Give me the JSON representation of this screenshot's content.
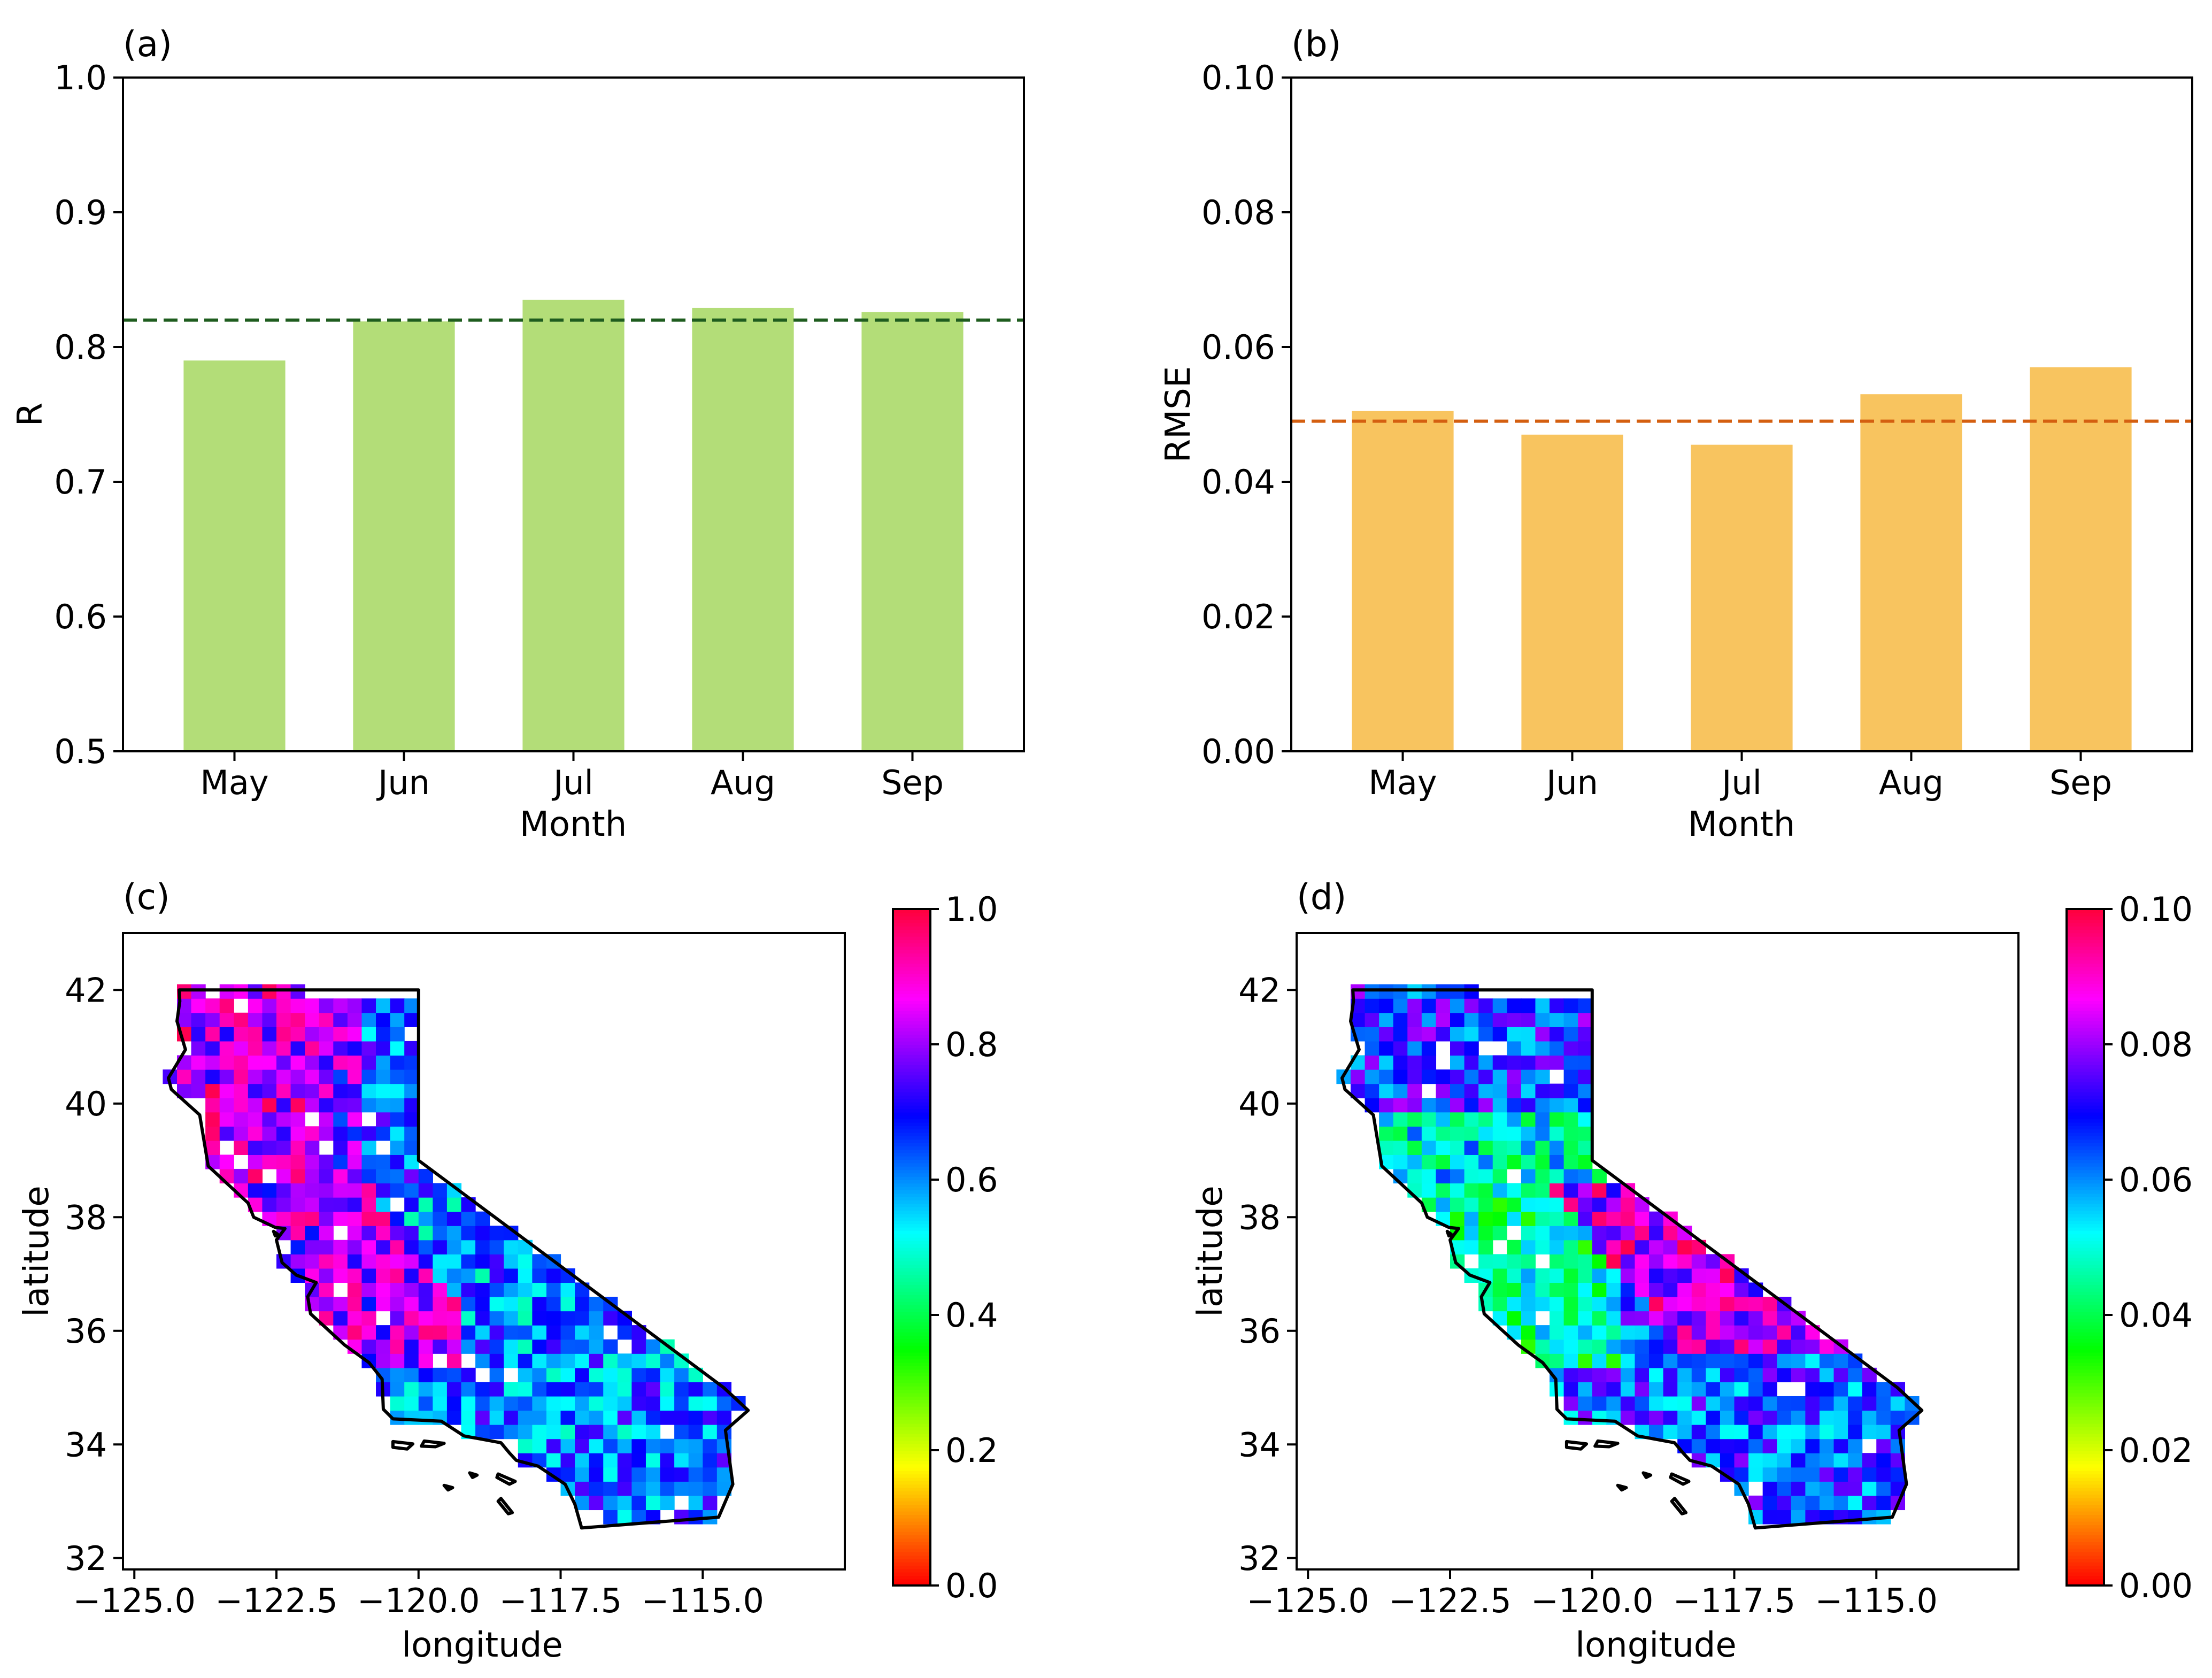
{
  "chart_data": [
    {
      "type": "bar",
      "panel_label": "(a)",
      "categories": [
        "May",
        "Jun",
        "Jul",
        "Aug",
        "Sep"
      ],
      "values": [
        0.79,
        0.819,
        0.835,
        0.829,
        0.826
      ],
      "reference_line": 0.82,
      "reference_line_style": "dashed",
      "bar_color": "#b3dd78",
      "line_color": "#1e5c1e",
      "xlabel": "Month",
      "ylabel": "R",
      "ylim": [
        0.5,
        1.0
      ],
      "yticks": [
        0.5,
        0.6,
        0.7,
        0.8,
        0.9,
        1.0
      ],
      "ytick_labels": [
        "0.5",
        "0.6",
        "0.7",
        "0.8",
        "0.9",
        "1.0"
      ]
    },
    {
      "type": "bar",
      "panel_label": "(b)",
      "categories": [
        "May",
        "Jun",
        "Jul",
        "Aug",
        "Sep"
      ],
      "values": [
        0.0505,
        0.047,
        0.0455,
        0.053,
        0.057
      ],
      "reference_line": 0.049,
      "reference_line_style": "dashed",
      "bar_color": "#f8c45f",
      "line_color": "#d45f10",
      "xlabel": "Month",
      "ylabel": "RMSE",
      "ylim": [
        0.0,
        0.1
      ],
      "yticks": [
        0.0,
        0.02,
        0.04,
        0.06,
        0.08,
        0.1
      ],
      "ytick_labels": [
        "0.00",
        "0.02",
        "0.04",
        "0.06",
        "0.08",
        "0.10"
      ]
    },
    {
      "type": "heatmap",
      "panel_label": "(c)",
      "description_of_field": "gridded R over California",
      "xlabel": "longitude",
      "ylabel": "latitude",
      "xlim": [
        -125.2,
        -112.5
      ],
      "ylim": [
        31.8,
        43.0
      ],
      "xticks": [
        -125.0,
        -122.5,
        -120.0,
        -117.5,
        -115.0
      ],
      "xtick_labels": [
        "−125.0",
        "−122.5",
        "−120.0",
        "−117.5",
        "−115.0"
      ],
      "yticks": [
        32,
        34,
        36,
        38,
        40,
        42
      ],
      "ytick_labels": [
        "32",
        "34",
        "36",
        "38",
        "40",
        "42"
      ],
      "colorbar": {
        "range": [
          0.0,
          1.0
        ],
        "ticks": [
          0.0,
          0.2,
          0.4,
          0.6,
          0.8,
          1.0
        ],
        "tick_labels": [
          "0.0",
          "0.2",
          "0.4",
          "0.6",
          "0.8",
          "1.0"
        ],
        "colormap": [
          "#ff0000",
          "#ffff00",
          "#00ff00",
          "#00ffff",
          "#0000ff",
          "#ff00ff",
          "#ff0033"
        ]
      },
      "typical_values": {
        "north_coast": 0.85,
        "central_valley": 0.82,
        "sierra": 0.55,
        "south": 0.62
      }
    },
    {
      "type": "heatmap",
      "panel_label": "(d)",
      "description_of_field": "gridded RMSE over California",
      "xlabel": "longitude",
      "ylabel": "latitude",
      "xlim": [
        -125.2,
        -112.5
      ],
      "ylim": [
        31.8,
        43.0
      ],
      "xticks": [
        -125.0,
        -122.5,
        -120.0,
        -117.5,
        -115.0
      ],
      "xtick_labels": [
        "−125.0",
        "−122.5",
        "−120.0",
        "−117.5",
        "−115.0"
      ],
      "yticks": [
        32,
        34,
        36,
        38,
        40,
        42
      ],
      "ytick_labels": [
        "32",
        "34",
        "36",
        "38",
        "40",
        "42"
      ],
      "colorbar": {
        "range": [
          0.0,
          0.1
        ],
        "ticks": [
          0.0,
          0.02,
          0.04,
          0.06,
          0.08,
          0.1
        ],
        "tick_labels": [
          "0.00",
          "0.02",
          "0.04",
          "0.06",
          "0.08",
          "0.10"
        ],
        "colormap": [
          "#ff0000",
          "#ffff00",
          "#00ff00",
          "#00ffff",
          "#0000ff",
          "#ff00ff",
          "#ff0033"
        ]
      },
      "typical_values": {
        "north_coast": 0.052,
        "central_valley": 0.045,
        "sierra": 0.085,
        "south": 0.065
      }
    }
  ]
}
